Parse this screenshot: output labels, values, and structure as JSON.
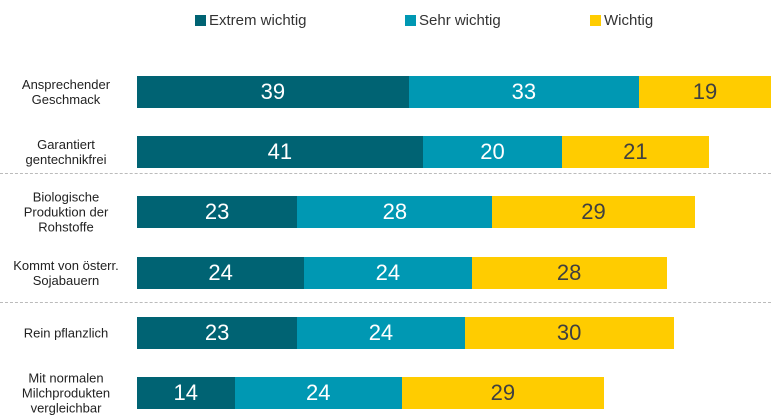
{
  "chart_data": {
    "type": "stacked-bar-horizontal",
    "categories": [
      "Ansprechender Geschmack",
      "Garantiert gentechnikfrei",
      "Biologische Produktion der Rohstoffe",
      "Kommt von österr. Sojabauern",
      "Rein pflanzlich",
      "Mit normalen Milchprodukten vergleichbar"
    ],
    "series": [
      {
        "name": "Extrem wichtig",
        "color": "#006373",
        "label_color": "#ffffff",
        "values": [
          39,
          41,
          23,
          24,
          23,
          14
        ]
      },
      {
        "name": "Sehr wichtig",
        "color": "#0098b3",
        "label_color": "#ffffff",
        "values": [
          33,
          20,
          28,
          24,
          24,
          24
        ]
      },
      {
        "name": "Wichtig",
        "color": "#ffcc00",
        "label_color": "#404040",
        "values": [
          19,
          21,
          29,
          28,
          30,
          29
        ]
      }
    ]
  }
}
